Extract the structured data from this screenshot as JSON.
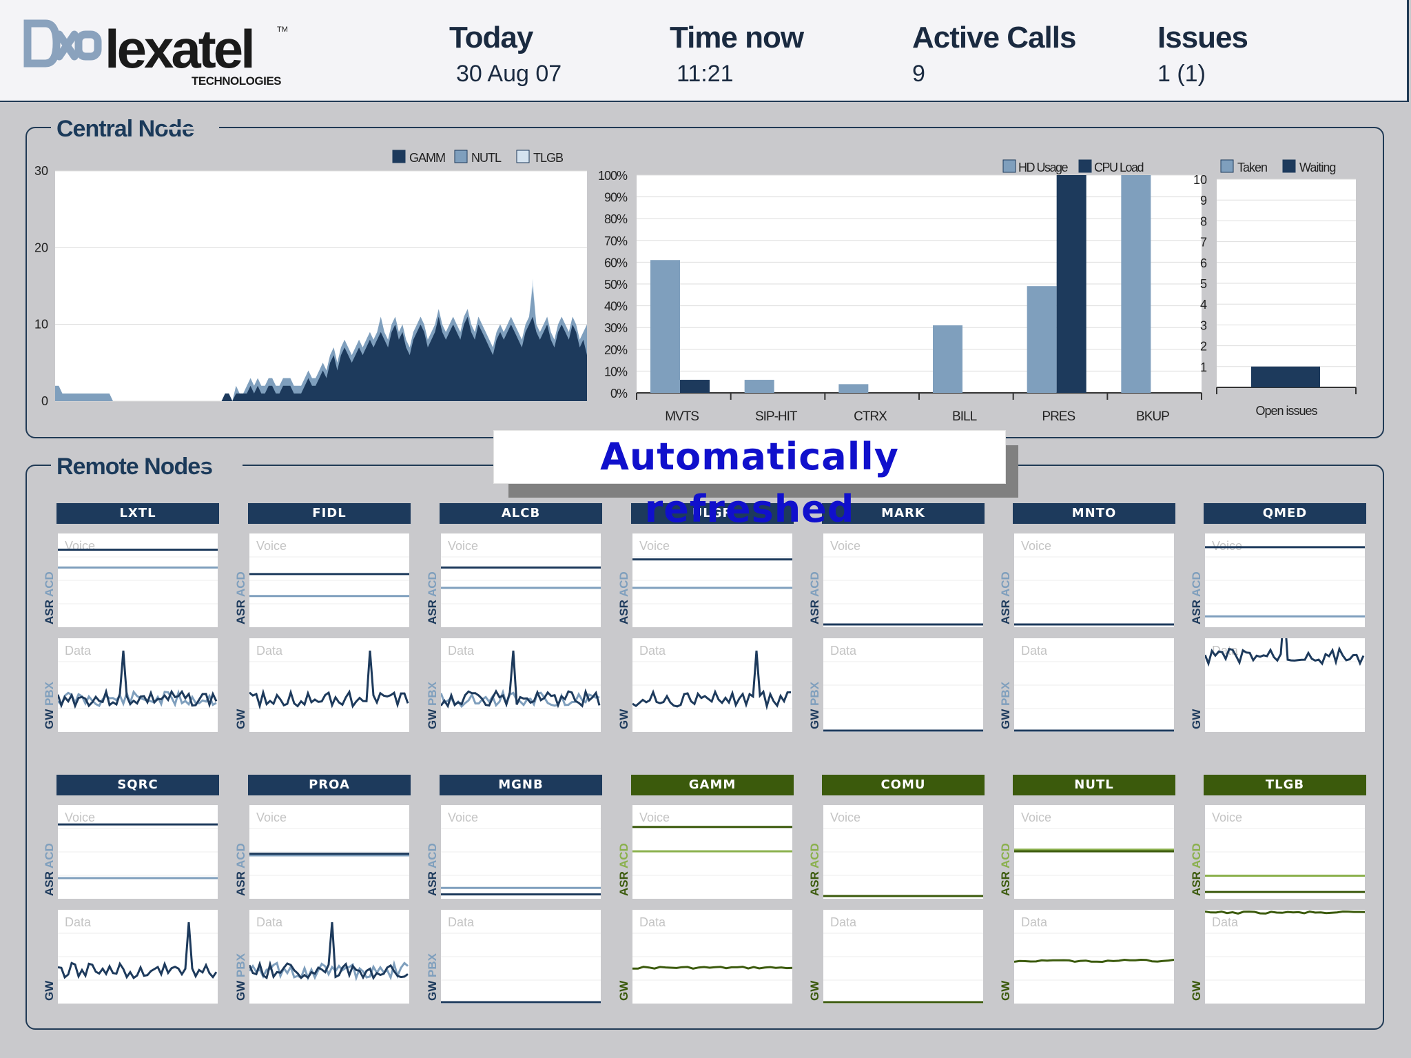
{
  "header": {
    "brand": "lexatel",
    "brand_sub": "TECHNOLOGIES",
    "trademark": "TM",
    "today_label": "Today",
    "today_value": "30 Aug 07",
    "time_label": "Time now",
    "time_value": "11:21",
    "calls_label": "Active Calls",
    "calls_value": "9",
    "issues_label": "Issues",
    "issues_value": "1 (1)"
  },
  "central": {
    "title": "Central Node"
  },
  "remote": {
    "title": "Remote Nodes"
  },
  "banner": "Automatically refreshed",
  "colors": {
    "navy": "#1d3a5c",
    "steel": "#7f9fbd",
    "pale": "#d5e3ef",
    "green_dark": "#3b5a0c",
    "green_light": "#8ab04c"
  },
  "chart_data": [
    {
      "type": "area",
      "series": [
        {
          "name": "GAMM",
          "color": "#1d3a5c",
          "values": [
            0,
            0,
            0,
            0,
            0,
            0,
            0,
            0,
            0,
            0,
            0,
            0,
            0,
            0,
            0,
            0,
            0,
            0,
            0,
            0,
            0,
            0,
            0,
            0,
            0,
            0,
            0,
            0,
            0,
            0,
            0,
            0,
            0,
            0,
            0,
            0,
            0,
            0,
            0,
            0,
            0,
            0,
            0,
            0,
            0,
            0,
            0,
            1,
            1,
            0,
            1,
            1,
            1,
            1,
            2,
            1,
            2,
            1,
            1,
            2,
            2,
            1,
            1,
            2,
            2,
            2,
            1,
            1,
            1,
            2,
            3,
            2,
            2,
            3,
            4,
            3,
            5,
            6,
            4,
            6,
            7,
            6,
            5,
            6,
            7,
            6,
            7,
            8,
            7,
            8,
            9,
            8,
            7,
            9,
            10,
            8,
            9,
            7,
            6,
            8,
            9,
            10,
            9,
            7,
            8,
            9,
            11,
            9,
            8,
            9,
            10,
            9,
            8,
            10,
            11,
            9,
            8,
            10,
            9,
            8,
            7,
            6,
            8,
            9,
            8,
            9,
            10,
            9,
            8,
            7,
            9,
            10,
            11,
            9,
            8,
            9,
            10,
            8,
            7,
            9,
            10,
            9,
            8,
            10,
            9,
            7,
            8,
            6
          ]
        },
        {
          "name": "NUTL",
          "color": "#7f9fbd",
          "values": [
            2,
            2,
            1,
            1,
            1,
            1,
            1,
            1,
            1,
            1,
            1,
            1,
            1,
            1,
            1,
            1,
            0,
            0,
            0,
            0,
            0,
            0,
            0,
            0,
            0,
            0,
            0,
            0,
            0,
            0,
            0,
            0,
            0,
            0,
            0,
            0,
            0,
            0,
            0,
            0,
            0,
            0,
            0,
            0,
            0,
            0,
            0,
            1,
            1,
            0,
            2,
            1,
            1,
            2,
            3,
            2,
            3,
            2,
            2,
            3,
            3,
            2,
            2,
            3,
            3,
            3,
            2,
            2,
            2,
            3,
            4,
            3,
            3,
            4,
            5,
            4,
            6,
            7,
            5,
            7,
            8,
            7,
            6,
            7,
            8,
            7,
            8,
            9,
            8,
            9,
            11,
            9,
            8,
            10,
            11,
            9,
            10,
            8,
            7,
            9,
            10,
            11,
            10,
            8,
            9,
            10,
            12,
            10,
            9,
            10,
            11,
            10,
            9,
            11,
            12,
            10,
            9,
            11,
            10,
            9,
            8,
            7,
            9,
            10,
            9,
            10,
            11,
            10,
            9,
            8,
            10,
            11,
            15,
            10,
            9,
            10,
            11,
            9,
            8,
            10,
            11,
            10,
            9,
            11,
            10,
            8,
            9,
            10
          ]
        },
        {
          "name": "TLGB",
          "color": "#d5e3ef",
          "values": [
            0,
            0,
            0,
            0,
            0,
            0,
            0,
            0,
            0,
            0,
            0,
            0,
            0,
            0,
            0,
            0,
            0,
            0,
            0,
            0,
            0,
            0,
            0,
            0,
            0,
            0,
            0,
            0,
            0,
            0,
            0,
            0,
            0,
            0,
            0,
            0,
            0,
            0,
            0,
            0,
            0,
            0,
            0,
            0,
            0,
            0,
            0,
            1,
            1,
            0,
            2,
            1,
            1,
            2,
            3,
            2,
            3,
            2,
            2,
            3,
            3,
            2,
            2,
            3,
            3,
            3,
            2,
            2,
            2,
            3,
            4,
            3,
            3,
            4,
            5,
            4,
            6,
            7,
            5,
            7,
            8,
            7,
            6,
            7,
            8,
            7,
            8,
            9,
            8,
            9,
            11,
            9,
            8,
            10,
            11,
            9,
            10,
            8,
            7,
            9,
            10,
            11,
            10,
            8,
            9,
            10,
            12,
            10,
            9,
            10,
            11,
            10,
            9,
            11,
            12,
            10,
            9,
            11,
            10,
            9,
            8,
            7,
            9,
            10,
            9,
            10,
            11,
            10,
            9,
            8,
            10,
            11,
            16,
            10,
            9,
            10,
            11,
            9,
            8,
            10,
            11,
            10,
            9,
            11,
            10,
            8,
            9,
            10
          ]
        }
      ],
      "ylim": [
        0,
        30
      ],
      "yticks": [
        "0",
        "10",
        "20",
        "30"
      ],
      "legend": [
        "GAMM",
        "NUTL",
        "TLGB"
      ],
      "legend_position": "top-right"
    },
    {
      "type": "bar",
      "categories": [
        "MVTS",
        "SIP-HIT",
        "CTRX",
        "BILL",
        "PRES",
        "BKUP"
      ],
      "series": [
        {
          "name": "HD Usage",
          "color": "#7f9fbd",
          "values": [
            61,
            6,
            4,
            31,
            49,
            100
          ]
        },
        {
          "name": "CPU Load",
          "color": "#1d3a5c",
          "values": [
            6,
            0,
            0,
            0,
            100,
            0
          ]
        }
      ],
      "ylim": [
        0,
        100
      ],
      "yticks": [
        "0%",
        "10%",
        "20%",
        "30%",
        "40%",
        "50%",
        "60%",
        "70%",
        "80%",
        "90%",
        "100%"
      ],
      "legend_position": "top-right"
    },
    {
      "type": "bar",
      "categories": [
        "Open issues"
      ],
      "series": [
        {
          "name": "Taken",
          "color": "#7f9fbd",
          "values": [
            0
          ]
        },
        {
          "name": "Waiting",
          "color": "#1d3a5c",
          "values": [
            1
          ]
        }
      ],
      "ylim": [
        0,
        10
      ],
      "yticks": [
        "1",
        "2",
        "3",
        "4",
        "5",
        "6",
        "7",
        "8",
        "9",
        "10"
      ],
      "legend_position": "top"
    }
  ],
  "node_labels": {
    "voice": "Voice",
    "data": "Data",
    "asr": "ASR",
    "acd": "ACD",
    "gw": "GW",
    "pbx": "PBX"
  },
  "nodes": [
    {
      "name": "LXTL",
      "theme": "blue",
      "pbx": true,
      "asr": 0.92,
      "acd": 0.7,
      "data": "noisy"
    },
    {
      "name": "FIDL",
      "theme": "blue",
      "pbx": false,
      "asr": 0.62,
      "acd": 0.35,
      "data": "noisy"
    },
    {
      "name": "ALCB",
      "theme": "blue",
      "pbx": true,
      "asr": 0.7,
      "acd": 0.45,
      "data": "noisy"
    },
    {
      "name": "ULGR",
      "theme": "blue",
      "pbx": false,
      "asr": 0.8,
      "acd": 0.45,
      "data": "noisy"
    },
    {
      "name": "MARK",
      "theme": "blue",
      "pbx": true,
      "asr": 0.0,
      "acd": 0.0,
      "data": "flat"
    },
    {
      "name": "MNTO",
      "theme": "blue",
      "pbx": true,
      "asr": 0.0,
      "acd": 0.0,
      "data": "flat"
    },
    {
      "name": "QMED",
      "theme": "blue",
      "pbx": false,
      "asr": 0.95,
      "acd": 0.1,
      "data": "noisy"
    },
    {
      "name": "SQRC",
      "theme": "blue",
      "pbx": false,
      "asr": 0.88,
      "acd": 0.22,
      "data": "noisy"
    },
    {
      "name": "PROA",
      "theme": "blue",
      "pbx": true,
      "asr": 0.52,
      "acd": 0.5,
      "data": "noisy"
    },
    {
      "name": "MGNB",
      "theme": "blue",
      "pbx": true,
      "asr": 0.02,
      "acd": 0.1,
      "data": "flat"
    },
    {
      "name": "GAMM",
      "theme": "green",
      "pbx": false,
      "asr": 0.85,
      "acd": 0.55,
      "data": "level"
    },
    {
      "name": "COMU",
      "theme": "green",
      "pbx": false,
      "asr": 0.0,
      "acd": 0.0,
      "data": "flat"
    },
    {
      "name": "NUTL",
      "theme": "green",
      "pbx": false,
      "asr": 0.55,
      "acd": 0.57,
      "data": "level"
    },
    {
      "name": "TLGB",
      "theme": "green",
      "pbx": false,
      "asr": 0.05,
      "acd": 0.25,
      "data": "level-high"
    }
  ]
}
